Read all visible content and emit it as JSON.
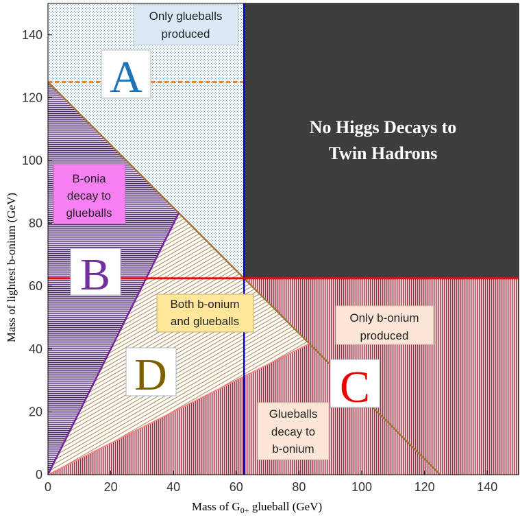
{
  "chart_data": {
    "type": "area",
    "title": "",
    "xlabel": "Mass of G",
    "xlabel_sub": "0+",
    "xlabel_suffix": " glueball (GeV)",
    "ylabel": "Mass of lightest b-onium (GeV)",
    "xlim": [
      0,
      150
    ],
    "ylim": [
      0,
      150
    ],
    "xticks": [
      0,
      20,
      40,
      60,
      80,
      100,
      120,
      140
    ],
    "yticks": [
      0,
      20,
      40,
      60,
      80,
      100,
      120,
      140
    ],
    "boundaries": {
      "higgs_mass_line": {
        "points": [
          [
            0,
            125
          ],
          [
            62.5,
            125
          ]
        ],
        "color": "#e8842a",
        "style": "dashed"
      },
      "kinematic_diagonal": {
        "points": [
          [
            0,
            125
          ],
          [
            125,
            0
          ]
        ],
        "color": "#a6743a"
      },
      "glueball_threshold": {
        "points": [
          [
            62.5,
            0
          ],
          [
            62.5,
            150
          ]
        ],
        "color": "#0000dd"
      },
      "bonium_threshold": {
        "points": [
          [
            0,
            62.5
          ],
          [
            150,
            62.5
          ]
        ],
        "color": "#e01010"
      },
      "bonia_to_glueballs": {
        "points": [
          [
            0,
            0
          ],
          [
            41.7,
            83.3
          ]
        ],
        "color": "#7a22a0"
      },
      "glueballs_to_bonium": {
        "points": [
          [
            0,
            0
          ],
          [
            83.3,
            41.7
          ]
        ],
        "color": "#ff8080"
      }
    },
    "regions": [
      {
        "id": "A",
        "label": "A",
        "color": "#1f73b7",
        "description": "Only glueballs produced"
      },
      {
        "id": "B",
        "label": "B",
        "color": "#7030a0",
        "description": "B-onia decay to glueballs"
      },
      {
        "id": "C",
        "label": "C",
        "color": "#ee0000",
        "description": "Only b-onium produced"
      },
      {
        "id": "D",
        "label": "D",
        "color": "#7f6000",
        "description": "Both b-onium and glueballs"
      },
      {
        "id": "none",
        "label": "No Higgs Decays to Twin Hadrons",
        "color": "#3d3d3d"
      }
    ]
  },
  "annotations": {
    "only_glueballs": [
      "Only glueballs",
      "produced"
    ],
    "no_higgs": [
      "No Higgs Decays to",
      "Twin Hadrons"
    ],
    "bonia_decay": [
      "B-onia",
      "decay to",
      "glueballs"
    ],
    "both": [
      "Both b-onium",
      "and glueballs"
    ],
    "only_bonium": [
      "Only b-onium",
      "produced"
    ],
    "glueballs_decay": [
      "Glueballs",
      "decay to",
      "b-onium"
    ]
  },
  "colors": {
    "dark_region": "#3d3d3d",
    "bonia_box": "#f67ff2",
    "both_box": "#ffe699",
    "only_glueballs_box": "#dbe9f6",
    "peach_box": "#fbe5d6"
  }
}
